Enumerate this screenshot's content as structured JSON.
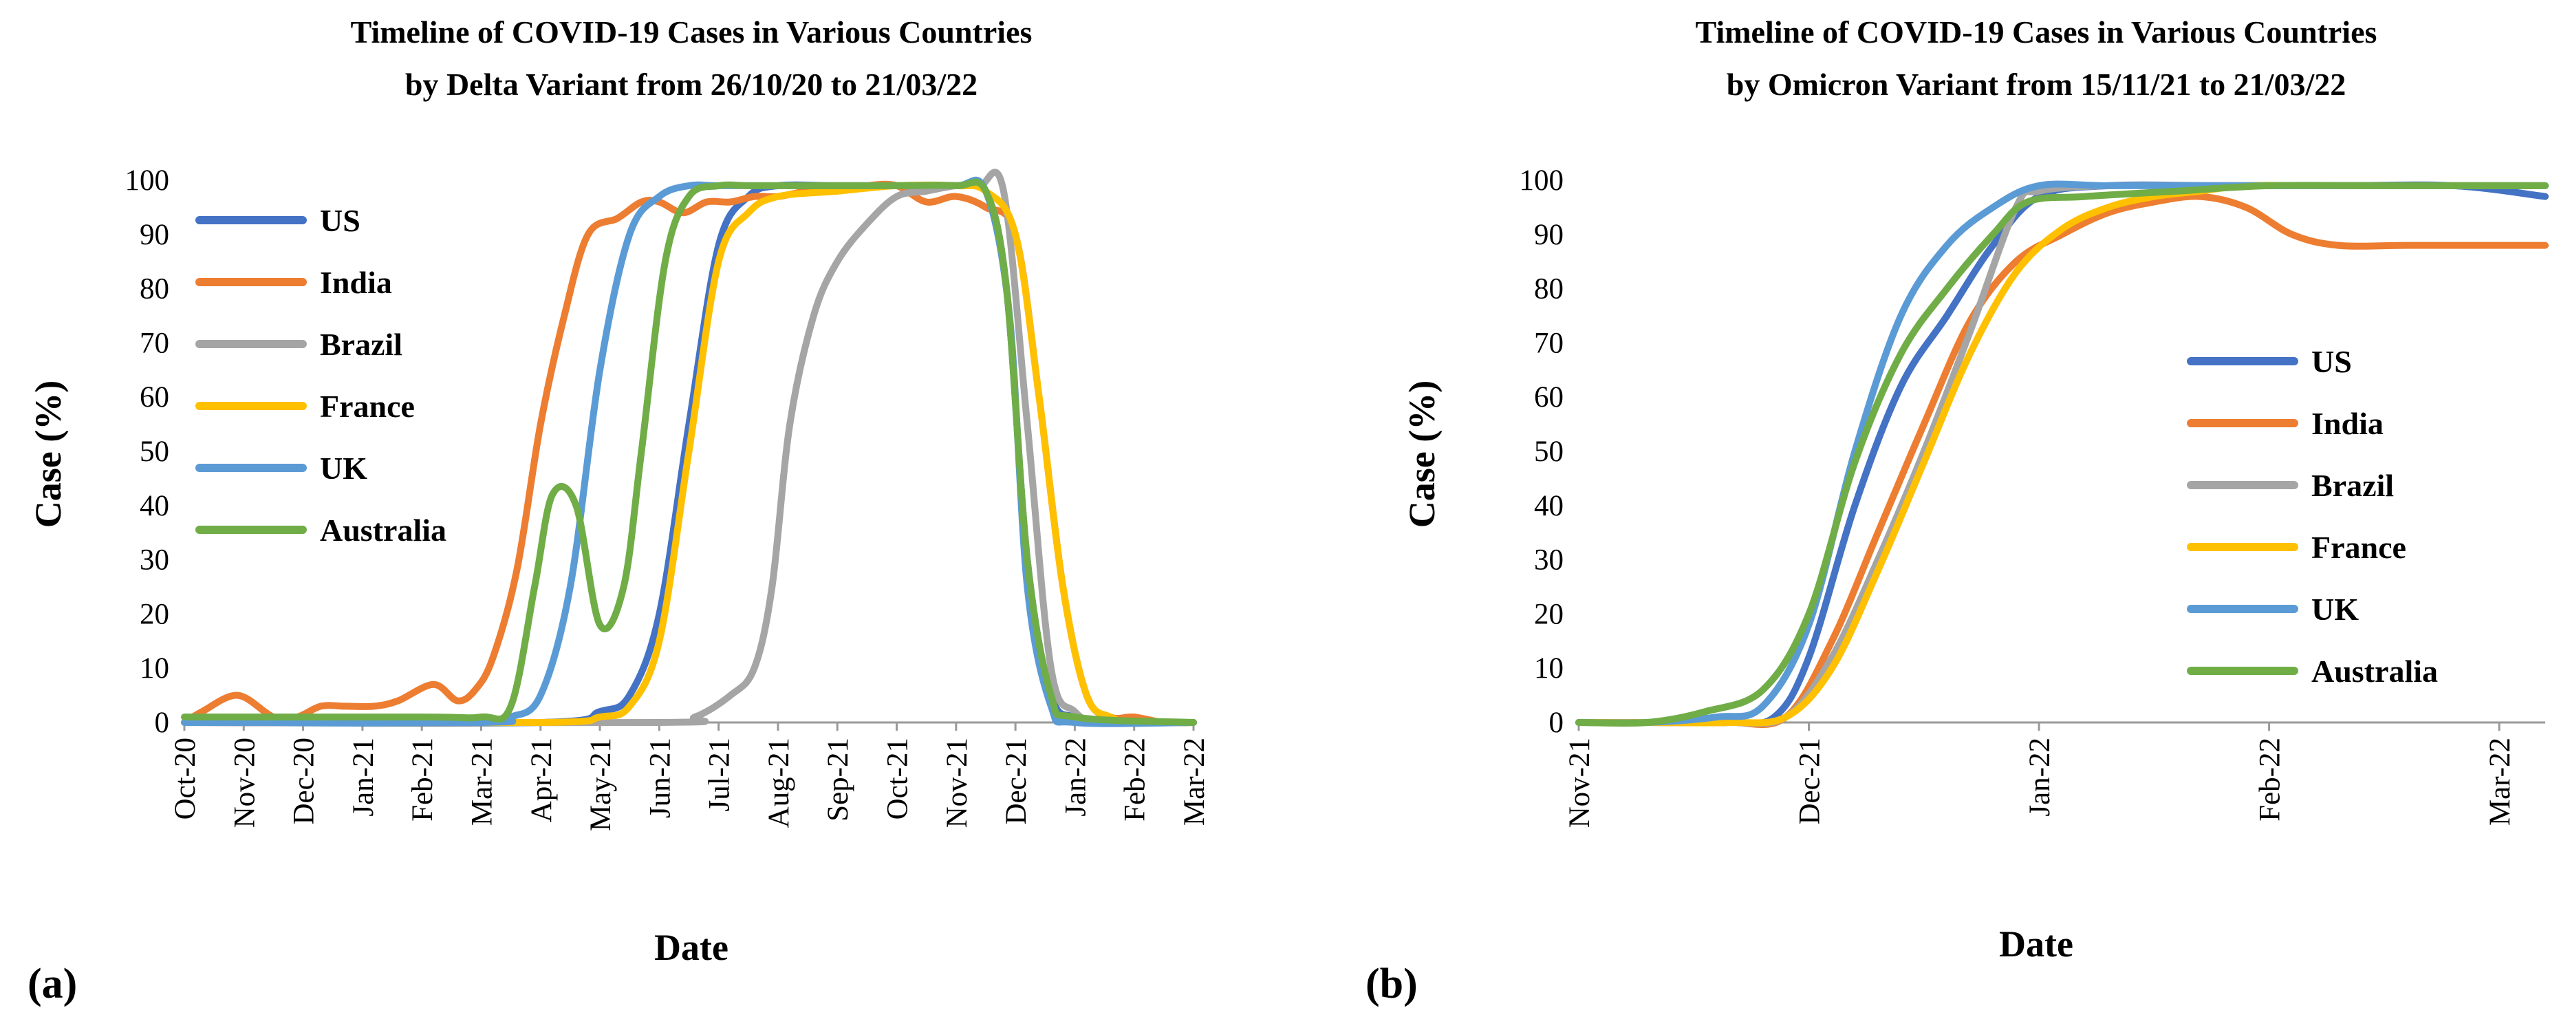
{
  "colors": {
    "US": "#4472C4",
    "India": "#ED7D31",
    "Brazil": "#A5A5A5",
    "France": "#FFC000",
    "UK": "#5B9BD5",
    "Australia": "#70AD47",
    "axis": "#9a9a9a"
  },
  "chart_data": [
    {
      "type": "line",
      "panel_label": "(a)",
      "title_lines": [
        "Timeline of COVID-19 Cases in Various Countries",
        "by Delta Variant from 26/10/20 to 21/03/22"
      ],
      "xlabel": "Date",
      "ylabel": "Case (%)",
      "ylim": [
        0,
        100
      ],
      "yticks": [
        0,
        10,
        20,
        30,
        40,
        50,
        60,
        70,
        80,
        90,
        100
      ],
      "xticks": [
        "Oct-20",
        "Nov-20",
        "Dec-20",
        "Jan-21",
        "Feb-21",
        "Mar-21",
        "Apr-21",
        "May-21",
        "Jun-21",
        "Jul-21",
        "Aug-21",
        "Sep-21",
        "Oct-21",
        "Nov-21",
        "Dec-21",
        "Jan-22",
        "Feb-22",
        "Mar-22"
      ],
      "xlim": [
        0,
        17
      ],
      "legend_position": "top-left",
      "series": [
        {
          "name": "US",
          "color_key": "US",
          "x": [
            0,
            6,
            7,
            7.5,
            8,
            8.5,
            9,
            9.5,
            10,
            11,
            12,
            13,
            13.5,
            13.85,
            14.2,
            14.6,
            15,
            15.5,
            17
          ],
          "y": [
            0,
            0,
            2,
            5,
            20,
            55,
            88,
            97,
            99,
            99,
            99,
            99,
            98,
            80,
            30,
            5,
            1,
            0,
            0
          ]
        },
        {
          "name": "India",
          "color_key": "India",
          "x": [
            0,
            0.3,
            0.9,
            1.5,
            1.9,
            2.3,
            2.7,
            3.2,
            3.6,
            4.2,
            4.6,
            4.9,
            5.2,
            5.6,
            6,
            6.4,
            6.8,
            7.3,
            7.7,
            8,
            8.4,
            8.8,
            9.2,
            9.6,
            10,
            10.5,
            11,
            11.5,
            12,
            12.5,
            13,
            13.5,
            14,
            14.4,
            14.8,
            15.2,
            15.6,
            16,
            16.5,
            17
          ],
          "y": [
            0,
            2,
            5,
            1,
            1,
            3,
            3,
            3,
            4,
            7,
            4,
            6,
            12,
            28,
            55,
            75,
            90,
            93,
            96,
            96,
            94,
            96,
            96,
            97,
            97,
            98,
            98,
            99,
            99,
            96,
            97,
            95,
            90,
            60,
            25,
            5,
            1,
            1,
            0,
            0
          ]
        },
        {
          "name": "Brazil",
          "color_key": "Brazil",
          "x": [
            0,
            8,
            8.6,
            9.2,
            9.6,
            9.9,
            10.2,
            10.6,
            11,
            11.5,
            12,
            12.5,
            13,
            13.4,
            13.8,
            14.2,
            14.6,
            15,
            15.5,
            17
          ],
          "y": [
            0,
            0,
            1,
            5,
            10,
            25,
            55,
            75,
            85,
            92,
            97,
            98,
            99,
            99,
            98,
            55,
            10,
            2,
            0,
            0
          ]
        },
        {
          "name": "France",
          "color_key": "France",
          "x": [
            0,
            6,
            7,
            7.5,
            8,
            8.5,
            9,
            9.5,
            10,
            11,
            12,
            13,
            13.5,
            14,
            14.4,
            14.8,
            15.2,
            15.6,
            16,
            17
          ],
          "y": [
            0,
            0,
            1,
            3,
            15,
            50,
            85,
            94,
            97,
            98,
            99,
            99,
            98,
            90,
            60,
            25,
            5,
            1,
            0,
            0
          ]
        },
        {
          "name": "UK",
          "color_key": "UK",
          "x": [
            0,
            5,
            5.5,
            6,
            6.5,
            7,
            7.5,
            8,
            8.5,
            9,
            10,
            11,
            12,
            13,
            13.5,
            13.9,
            14.2,
            14.6,
            15,
            17
          ],
          "y": [
            0,
            0,
            1,
            5,
            25,
            65,
            90,
            97,
            99,
            99,
            99,
            99,
            99,
            99,
            98,
            75,
            25,
            3,
            0,
            0
          ]
        },
        {
          "name": "Australia",
          "color_key": "Australia",
          "x": [
            0,
            4,
            5,
            5.5,
            5.9,
            6.2,
            6.6,
            7,
            7.4,
            7.7,
            8.1,
            8.5,
            9,
            9.5,
            10,
            11,
            12,
            13,
            13.5,
            13.85,
            14.2,
            14.6,
            15,
            17
          ],
          "y": [
            1,
            1,
            1,
            3,
            25,
            42,
            40,
            18,
            25,
            50,
            85,
            97,
            99,
            99,
            99,
            99,
            99,
            99,
            98,
            80,
            30,
            5,
            1,
            0
          ]
        }
      ]
    },
    {
      "type": "line",
      "panel_label": "(b)",
      "title_lines": [
        "Timeline of COVID-19 Cases in Various Countries",
        "by Omicron Variant from 15/11/21 to 21/03/22"
      ],
      "xlabel": "Date",
      "ylabel": "Case (%)",
      "ylim": [
        0,
        100
      ],
      "yticks": [
        0,
        10,
        20,
        30,
        40,
        50,
        60,
        70,
        80,
        90,
        100
      ],
      "xticks": [
        "Nov-21",
        "Dec-21",
        "Jan-22",
        "Feb-22",
        "Mar-22"
      ],
      "xlim": [
        0,
        4.2
      ],
      "legend_position": "right",
      "series": [
        {
          "name": "US",
          "color_key": "US",
          "x": [
            0,
            0.3,
            0.65,
            0.85,
            1,
            1.2,
            1.4,
            1.6,
            1.8,
            2,
            2.3,
            2.8,
            3.3,
            3.8,
            4.2
          ],
          "y": [
            0,
            0,
            0,
            1,
            12,
            40,
            62,
            75,
            88,
            97,
            99,
            99,
            99,
            99,
            97
          ]
        },
        {
          "name": "India",
          "color_key": "India",
          "x": [
            0,
            0.3,
            0.65,
            0.9,
            1.1,
            1.3,
            1.5,
            1.7,
            1.9,
            2.1,
            2.3,
            2.5,
            2.7,
            2.9,
            3.1,
            3.3,
            3.6,
            4,
            4.2
          ],
          "y": [
            0,
            0,
            0,
            1,
            15,
            35,
            55,
            74,
            85,
            90,
            94,
            96,
            97,
            95,
            90,
            88,
            88,
            88,
            88
          ]
        },
        {
          "name": "Brazil",
          "color_key": "Brazil",
          "x": [
            0,
            0.3,
            0.65,
            0.9,
            1.1,
            1.3,
            1.5,
            1.7,
            1.9,
            2,
            2.3,
            2.8,
            3.3,
            3.8,
            4.2
          ],
          "y": [
            0,
            0,
            0,
            1,
            12,
            30,
            50,
            72,
            95,
            98,
            99,
            99,
            99,
            99,
            99
          ]
        },
        {
          "name": "France",
          "color_key": "France",
          "x": [
            0,
            0.3,
            0.65,
            0.9,
            1.1,
            1.3,
            1.5,
            1.7,
            1.9,
            2.1,
            2.3,
            2.5,
            2.7,
            2.9,
            3.2,
            3.6,
            4.2
          ],
          "y": [
            0,
            0,
            0,
            1,
            10,
            28,
            48,
            68,
            83,
            91,
            95,
            97,
            98,
            99,
            99,
            99,
            99
          ]
        },
        {
          "name": "UK",
          "color_key": "UK",
          "x": [
            0,
            0.3,
            0.6,
            0.8,
            1,
            1.2,
            1.4,
            1.6,
            1.8,
            2,
            2.3,
            2.8,
            3.3,
            3.8,
            4.2
          ],
          "y": [
            0,
            0,
            1,
            3,
            18,
            50,
            75,
            88,
            95,
            99,
            99,
            99,
            99,
            99,
            99
          ]
        },
        {
          "name": "Australia",
          "color_key": "Australia",
          "x": [
            0,
            0.3,
            0.55,
            0.8,
            1,
            1.2,
            1.4,
            1.6,
            1.8,
            1.95,
            2.2,
            2.6,
            3,
            3.5,
            4.2
          ],
          "y": [
            0,
            0,
            2,
            6,
            20,
            48,
            68,
            80,
            90,
            96,
            97,
            98,
            99,
            99,
            99
          ]
        }
      ]
    }
  ]
}
